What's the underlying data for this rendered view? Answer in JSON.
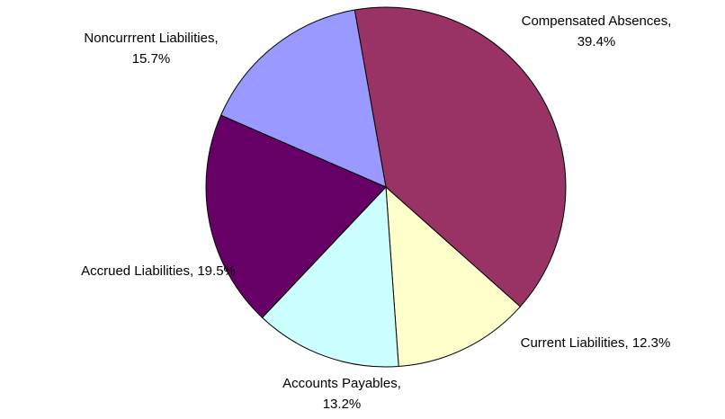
{
  "chart_data": {
    "type": "pie",
    "title": "",
    "slices": [
      {
        "category": "Compensated Absences",
        "value": 39.4,
        "display": "39.4%",
        "color": "#993366"
      },
      {
        "category": "Current Liabilities",
        "value": 12.3,
        "display": "12.3%",
        "color": "#FFFFCC"
      },
      {
        "category": "Accounts Payables",
        "value": 13.2,
        "display": "13.2%",
        "color": "#CCFFFF"
      },
      {
        "category": "Accrued Liabilities",
        "value": 19.5,
        "display": "19.5%",
        "color": "#660066"
      },
      {
        "category": "Noncurrrent Liabilities",
        "value": 15.7,
        "display": "15.7%",
        "color": "#9999FF"
      }
    ],
    "labels": [
      {
        "lines": [
          "Compensated Absences,",
          "39.4%"
        ]
      },
      {
        "lines": [
          "Current Liabilities, 12.3%"
        ]
      },
      {
        "lines": [
          "Accounts Payables,",
          "13.2%"
        ]
      },
      {
        "lines": [
          "Accrued Liabilities, 19.5%"
        ]
      },
      {
        "lines": [
          "Noncurrrent Liabilities,",
          "15.7%"
        ]
      }
    ],
    "legend": "none",
    "start_angle_clock": "about 12 o'clock (slightly left of top)",
    "direction": "clockwise"
  }
}
